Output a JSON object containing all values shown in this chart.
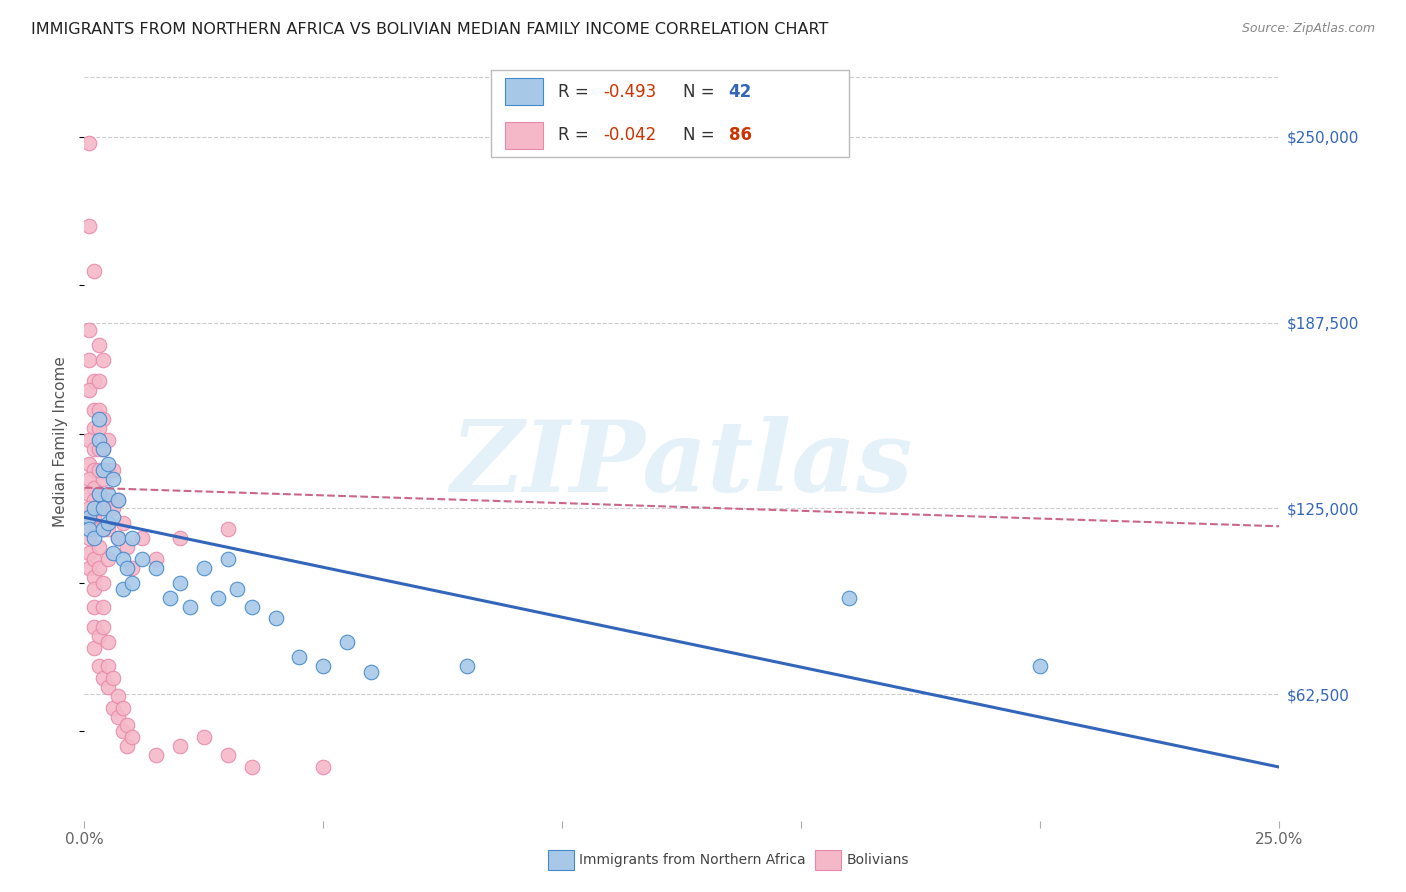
{
  "title": "IMMIGRANTS FROM NORTHERN AFRICA VS BOLIVIAN MEDIAN FAMILY INCOME CORRELATION CHART",
  "source": "Source: ZipAtlas.com",
  "ylabel": "Median Family Income",
  "yticks": [
    62500,
    125000,
    187500,
    250000
  ],
  "ytick_labels": [
    "$62,500",
    "$125,000",
    "$187,500",
    "$250,000"
  ],
  "xmin": 0.0,
  "xmax": 0.25,
  "ymin": 20000,
  "ymax": 275000,
  "legend_blue_r": "-0.493",
  "legend_blue_n": "42",
  "legend_pink_r": "-0.042",
  "legend_pink_n": "86",
  "watermark": "ZIPatlas",
  "blue_fill": "#a8c8e8",
  "pink_fill": "#f4b8c8",
  "blue_edge": "#4488cc",
  "pink_edge": "#e888aa",
  "blue_line_color": "#3366bb",
  "pink_line_color": "#cc6688",
  "r_text_color": "#cc3300",
  "n_blue_color": "#3366bb",
  "n_pink_color": "#cc3300",
  "blue_scatter": [
    [
      0.001,
      122000
    ],
    [
      0.001,
      118000
    ],
    [
      0.002,
      125000
    ],
    [
      0.002,
      115000
    ],
    [
      0.003,
      155000
    ],
    [
      0.003,
      148000
    ],
    [
      0.003,
      130000
    ],
    [
      0.004,
      145000
    ],
    [
      0.004,
      138000
    ],
    [
      0.004,
      125000
    ],
    [
      0.004,
      118000
    ],
    [
      0.005,
      140000
    ],
    [
      0.005,
      130000
    ],
    [
      0.005,
      120000
    ],
    [
      0.006,
      135000
    ],
    [
      0.006,
      122000
    ],
    [
      0.006,
      110000
    ],
    [
      0.007,
      128000
    ],
    [
      0.007,
      115000
    ],
    [
      0.008,
      108000
    ],
    [
      0.008,
      98000
    ],
    [
      0.009,
      105000
    ],
    [
      0.01,
      115000
    ],
    [
      0.01,
      100000
    ],
    [
      0.012,
      108000
    ],
    [
      0.015,
      105000
    ],
    [
      0.018,
      95000
    ],
    [
      0.02,
      100000
    ],
    [
      0.022,
      92000
    ],
    [
      0.025,
      105000
    ],
    [
      0.028,
      95000
    ],
    [
      0.03,
      108000
    ],
    [
      0.032,
      98000
    ],
    [
      0.035,
      92000
    ],
    [
      0.04,
      88000
    ],
    [
      0.045,
      75000
    ],
    [
      0.05,
      72000
    ],
    [
      0.055,
      80000
    ],
    [
      0.06,
      70000
    ],
    [
      0.08,
      72000
    ],
    [
      0.16,
      95000
    ],
    [
      0.2,
      72000
    ]
  ],
  "pink_scatter": [
    [
      0.001,
      248000
    ],
    [
      0.001,
      220000
    ],
    [
      0.002,
      205000
    ],
    [
      0.001,
      185000
    ],
    [
      0.001,
      175000
    ],
    [
      0.002,
      168000
    ],
    [
      0.001,
      165000
    ],
    [
      0.002,
      158000
    ],
    [
      0.002,
      152000
    ],
    [
      0.001,
      148000
    ],
    [
      0.002,
      145000
    ],
    [
      0.003,
      180000
    ],
    [
      0.001,
      140000
    ],
    [
      0.002,
      138000
    ],
    [
      0.003,
      168000
    ],
    [
      0.001,
      135000
    ],
    [
      0.002,
      132000
    ],
    [
      0.003,
      158000
    ],
    [
      0.001,
      130000
    ],
    [
      0.002,
      128000
    ],
    [
      0.004,
      175000
    ],
    [
      0.001,
      125000
    ],
    [
      0.002,
      122000
    ],
    [
      0.004,
      155000
    ],
    [
      0.001,
      120000
    ],
    [
      0.003,
      152000
    ],
    [
      0.004,
      145000
    ],
    [
      0.001,
      115000
    ],
    [
      0.003,
      145000
    ],
    [
      0.004,
      135000
    ],
    [
      0.001,
      110000
    ],
    [
      0.003,
      138000
    ],
    [
      0.004,
      125000
    ],
    [
      0.001,
      105000
    ],
    [
      0.003,
      130000
    ],
    [
      0.004,
      118000
    ],
    [
      0.002,
      108000
    ],
    [
      0.003,
      125000
    ],
    [
      0.005,
      148000
    ],
    [
      0.002,
      102000
    ],
    [
      0.003,
      118000
    ],
    [
      0.005,
      138000
    ],
    [
      0.002,
      98000
    ],
    [
      0.003,
      112000
    ],
    [
      0.005,
      128000
    ],
    [
      0.002,
      92000
    ],
    [
      0.003,
      105000
    ],
    [
      0.005,
      118000
    ],
    [
      0.002,
      85000
    ],
    [
      0.004,
      100000
    ],
    [
      0.005,
      108000
    ],
    [
      0.002,
      78000
    ],
    [
      0.004,
      92000
    ],
    [
      0.006,
      138000
    ],
    [
      0.003,
      82000
    ],
    [
      0.004,
      85000
    ],
    [
      0.006,
      125000
    ],
    [
      0.003,
      72000
    ],
    [
      0.005,
      80000
    ],
    [
      0.007,
      128000
    ],
    [
      0.004,
      68000
    ],
    [
      0.005,
      72000
    ],
    [
      0.007,
      115000
    ],
    [
      0.005,
      65000
    ],
    [
      0.006,
      68000
    ],
    [
      0.008,
      120000
    ],
    [
      0.006,
      58000
    ],
    [
      0.007,
      62000
    ],
    [
      0.009,
      112000
    ],
    [
      0.007,
      55000
    ],
    [
      0.008,
      58000
    ],
    [
      0.01,
      105000
    ],
    [
      0.008,
      50000
    ],
    [
      0.009,
      52000
    ],
    [
      0.012,
      115000
    ],
    [
      0.009,
      45000
    ],
    [
      0.01,
      48000
    ],
    [
      0.015,
      108000
    ],
    [
      0.015,
      42000
    ],
    [
      0.02,
      45000
    ],
    [
      0.02,
      115000
    ],
    [
      0.025,
      48000
    ],
    [
      0.03,
      42000
    ],
    [
      0.03,
      118000
    ],
    [
      0.035,
      38000
    ],
    [
      0.05,
      38000
    ]
  ],
  "blue_line_x": [
    0.0,
    0.25
  ],
  "blue_line_y": [
    122000,
    38000
  ],
  "pink_line_x": [
    0.0,
    0.25
  ],
  "pink_line_y": [
    132000,
    119000
  ]
}
